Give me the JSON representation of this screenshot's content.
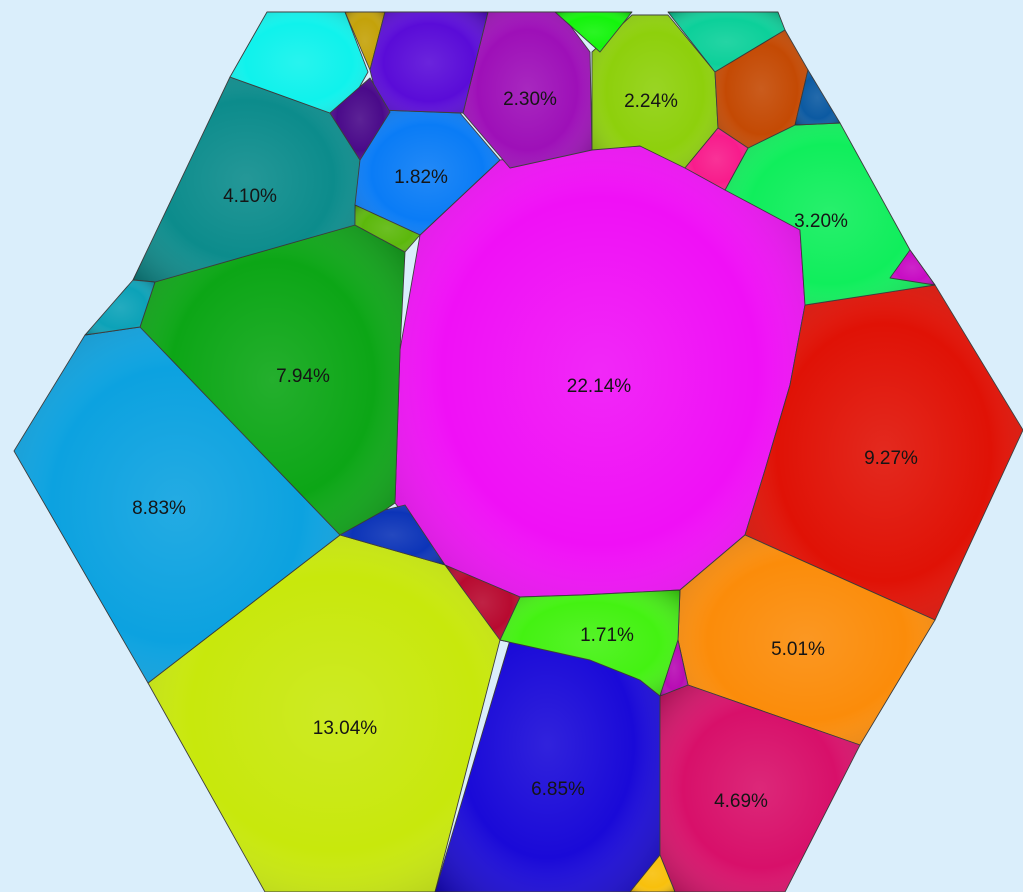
{
  "chart_data": {
    "type": "voronoi-treemap",
    "title": "",
    "shape": "hexagon",
    "cells": [
      {
        "id": "center",
        "label": "22.14%",
        "value": 22.14,
        "color": "#f010f6"
      },
      {
        "id": "bottom-left-large",
        "label": "13.04%",
        "value": 13.04,
        "color": "#c8e80c"
      },
      {
        "id": "right-red",
        "label": "9.27%",
        "value": 9.27,
        "color": "#e01206"
      },
      {
        "id": "left-blue",
        "label": "8.83%",
        "value": 8.83,
        "color": "#0ca2e0"
      },
      {
        "id": "left-green",
        "label": "7.94%",
        "value": 7.94,
        "color": "#0ca616"
      },
      {
        "id": "bottom-navy",
        "label": "6.85%",
        "value": 6.85,
        "color": "#1a0ad8"
      },
      {
        "id": "bottom-right-orange",
        "label": "5.01%",
        "value": 5.01,
        "color": "#fb8c0a"
      },
      {
        "id": "bottom-right-crimson",
        "label": "4.69%",
        "value": 4.69,
        "color": "#d8106a"
      },
      {
        "id": "top-left-teal",
        "label": "4.10%",
        "value": 4.1,
        "color": "#0c8c8c"
      },
      {
        "id": "top-right-green",
        "label": "3.20%",
        "value": 3.2,
        "color": "#10ee5c"
      },
      {
        "id": "top-purple",
        "label": "2.30%",
        "value": 2.3,
        "color": "#9e10b8"
      },
      {
        "id": "top-olive",
        "label": "2.24%",
        "value": 2.24,
        "color": "#8ed00c"
      },
      {
        "id": "top-left-azure",
        "label": "1.82%",
        "value": 1.82,
        "color": "#0a7cf6"
      },
      {
        "id": "bottom-lime",
        "label": "1.71%",
        "value": 1.71,
        "color": "#44f212"
      },
      {
        "id": "top-left-cyan",
        "label": "",
        "color": "#10f2ec"
      },
      {
        "id": "top-gold",
        "label": "",
        "color": "#c4a20a"
      },
      {
        "id": "top-indigo",
        "label": "",
        "color": "#5a0cd8"
      },
      {
        "id": "top-green-small",
        "label": "",
        "color": "#14f40c"
      },
      {
        "id": "top-aqua",
        "label": "",
        "color": "#0cd09a"
      },
      {
        "id": "top-right-rust",
        "label": "",
        "color": "#c44a04"
      },
      {
        "id": "top-right-navy",
        "label": "",
        "color": "#0c5aa2"
      },
      {
        "id": "top-pink",
        "label": "",
        "color": "#f81c8c"
      },
      {
        "id": "right-magenta-small",
        "label": "",
        "color": "#c80cc4"
      },
      {
        "id": "left-dark-purple",
        "label": "",
        "color": "#4a0a8a"
      },
      {
        "id": "left-olive-small",
        "label": "",
        "color": "#5cb80c"
      },
      {
        "id": "left-cyan-small",
        "label": "",
        "color": "#0ca2b8"
      },
      {
        "id": "center-blue-small",
        "label": "",
        "color": "#0c34b8"
      },
      {
        "id": "center-crimson-small",
        "label": "",
        "color": "#b80a30"
      },
      {
        "id": "bottom-magenta-small",
        "label": "",
        "color": "#b80cb4"
      },
      {
        "id": "bottom-gold",
        "label": "",
        "color": "#f8c00c"
      }
    ]
  }
}
